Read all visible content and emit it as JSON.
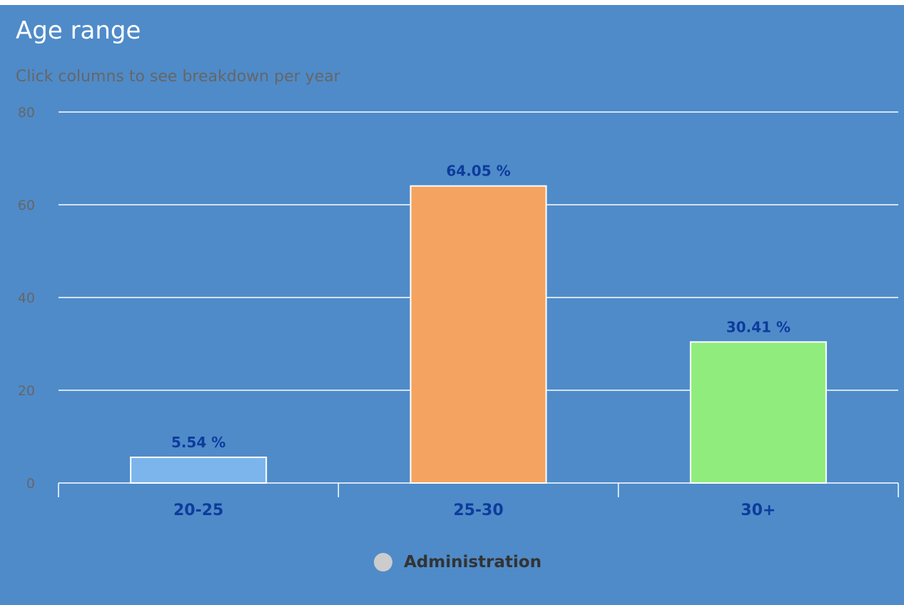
{
  "chart_data": {
    "type": "bar",
    "title": "Age range",
    "subtitle": "Click columns to see breakdown per year",
    "categories": [
      "20-25",
      "25-30",
      "30+"
    ],
    "series": [
      {
        "name": "Administration",
        "values": [
          5.54,
          64.05,
          30.41
        ],
        "data_labels": [
          "5.54 %",
          "64.05 %",
          "30.41 %"
        ]
      }
    ],
    "ylim": [
      0,
      80
    ],
    "yticks": [
      "0",
      "20",
      "40",
      "60",
      "80"
    ],
    "grid": true,
    "legend_placement": "bottom-center",
    "colors": {
      "background": "#4f8bc9",
      "bars": [
        "#7cb5ec",
        "#f4a460",
        "#90ed7d"
      ],
      "bar_border": "#ffffff",
      "gridline": "#ffffff",
      "data_label": "#0d3c9c",
      "category_label": "#0d3c9c",
      "tick_label": "#666666",
      "legend_symbol": "#cccccc",
      "legend_text": "#333333"
    }
  }
}
